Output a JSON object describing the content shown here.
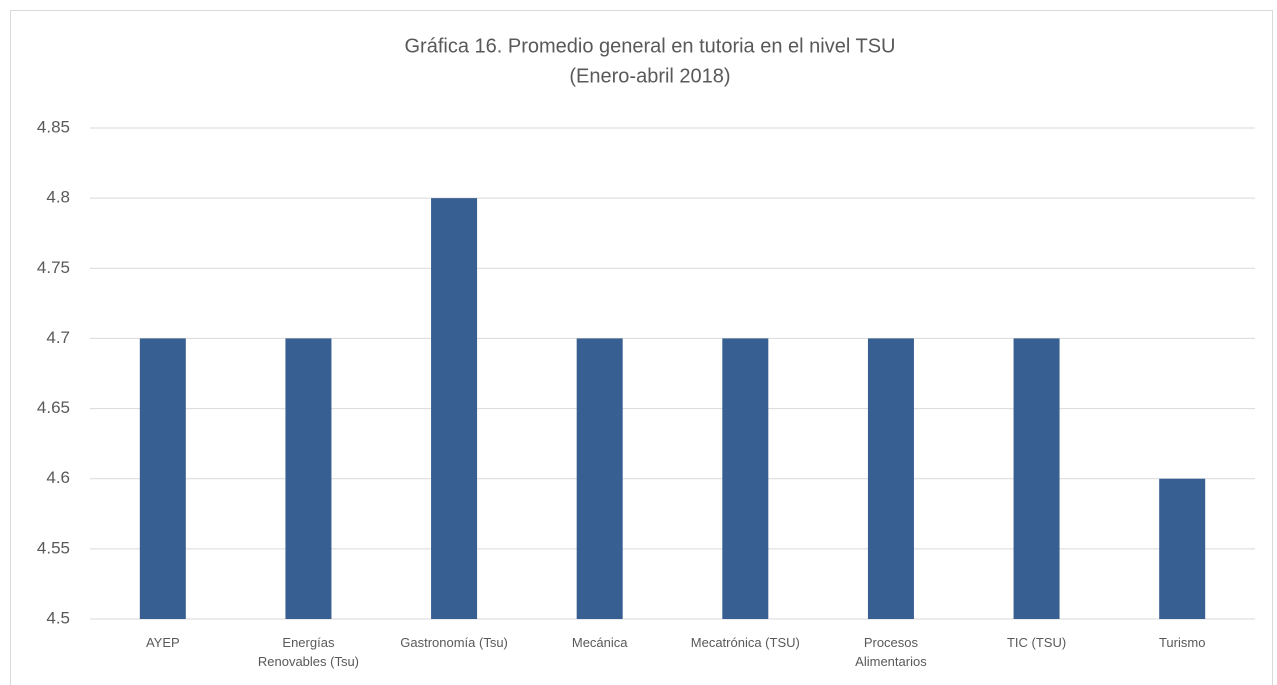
{
  "chart_data": {
    "type": "bar",
    "title": "Gráfica 16. Promedio general en tutoria en el nivel TSU",
    "subtitle": "(Enero-abril 2018)",
    "categories": [
      "AYEP",
      "Energías Renovables  (Tsu)",
      "Gastronomía (Tsu)",
      "Mecánica",
      "Mecatrónica (TSU)",
      "Procesos Alimentarios",
      "TIC (TSU)",
      "Turismo"
    ],
    "values": [
      4.7,
      4.7,
      4.8,
      4.7,
      4.7,
      4.7,
      4.7,
      4.6
    ],
    "color": "#375f91",
    "ylim": [
      4.5,
      4.85
    ],
    "yticks": [
      4.5,
      4.55,
      4.6,
      4.65,
      4.7,
      4.75,
      4.8,
      4.85
    ],
    "grid": true
  }
}
